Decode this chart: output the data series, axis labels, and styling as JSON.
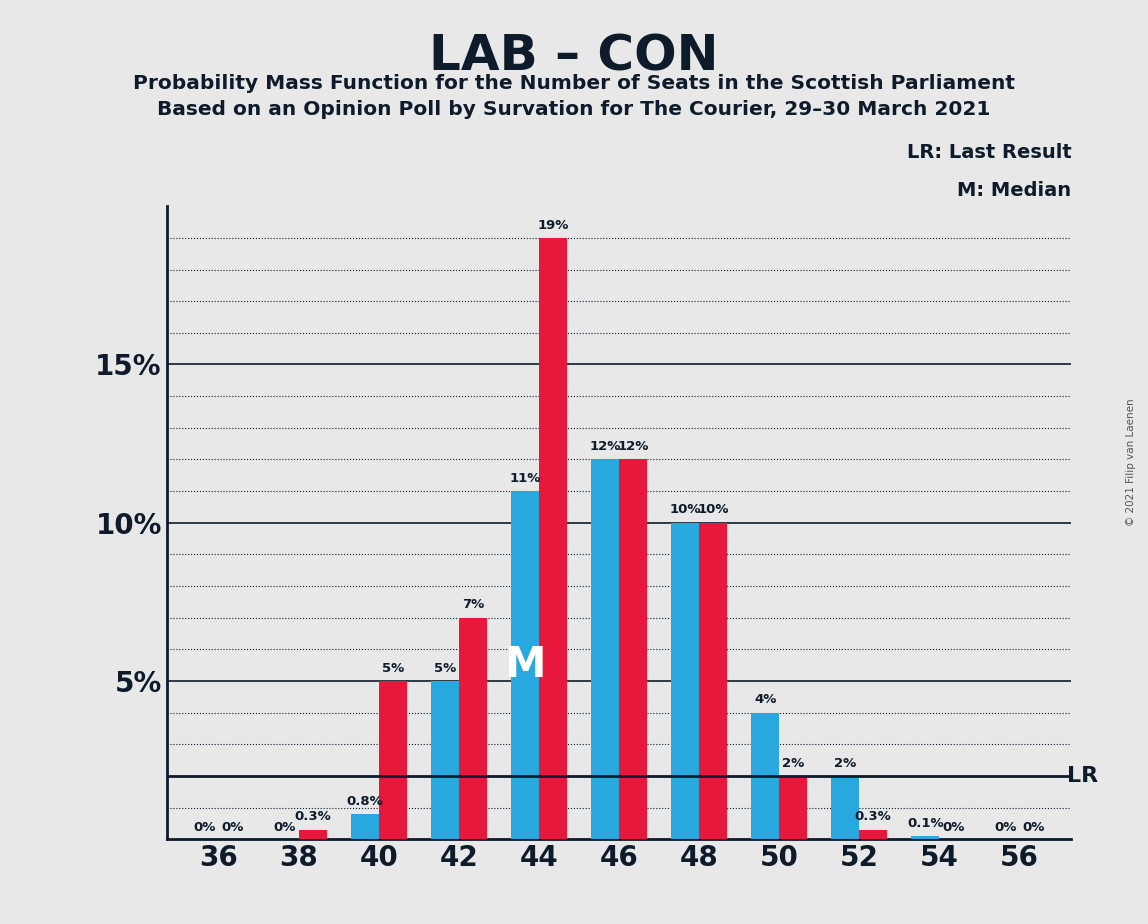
{
  "title": "LAB – CON",
  "subtitle1": "Probability Mass Function for the Number of Seats in the Scottish Parliament",
  "subtitle2": "Based on an Opinion Poll by Survation for The Courier, 29–30 March 2021",
  "copyright": "© 2021 Filip van Laenen",
  "seats": [
    36,
    38,
    40,
    42,
    44,
    46,
    48,
    50,
    52,
    54,
    56
  ],
  "red_values": [
    0,
    0.3,
    5,
    7,
    19,
    12,
    10,
    2,
    0.3,
    0,
    0
  ],
  "blue_values": [
    0,
    0,
    0.8,
    5,
    11,
    12,
    10,
    4,
    2,
    0.1,
    0
  ],
  "red_labels": [
    "0%",
    "0.3%",
    "5%",
    "7%",
    "19%",
    "12%",
    "10%",
    "2%",
    "0.3%",
    "0%",
    "0%"
  ],
  "blue_labels": [
    "0%",
    "0%",
    "0.8%",
    "5%",
    "11%",
    "12%",
    "10%",
    "4%",
    "2%",
    "0.1%",
    "0%"
  ],
  "red_color": "#e8173c",
  "blue_color": "#29a8e0",
  "background_color": "#e8e8e8",
  "text_color": "#0d1b2a",
  "median_seat": 44,
  "lr_value": 2,
  "lr_label": "LR",
  "lr_legend": "LR: Last Result",
  "m_legend": "M: Median",
  "ylim": [
    0,
    20
  ],
  "yticks": [
    5,
    10,
    15
  ],
  "ytick_labels": [
    "5%",
    "10%",
    "15%"
  ],
  "minor_yticks": [
    1,
    2,
    3,
    4,
    6,
    7,
    8,
    9,
    11,
    12,
    13,
    14,
    16,
    17,
    18,
    19
  ],
  "bar_width": 0.7
}
